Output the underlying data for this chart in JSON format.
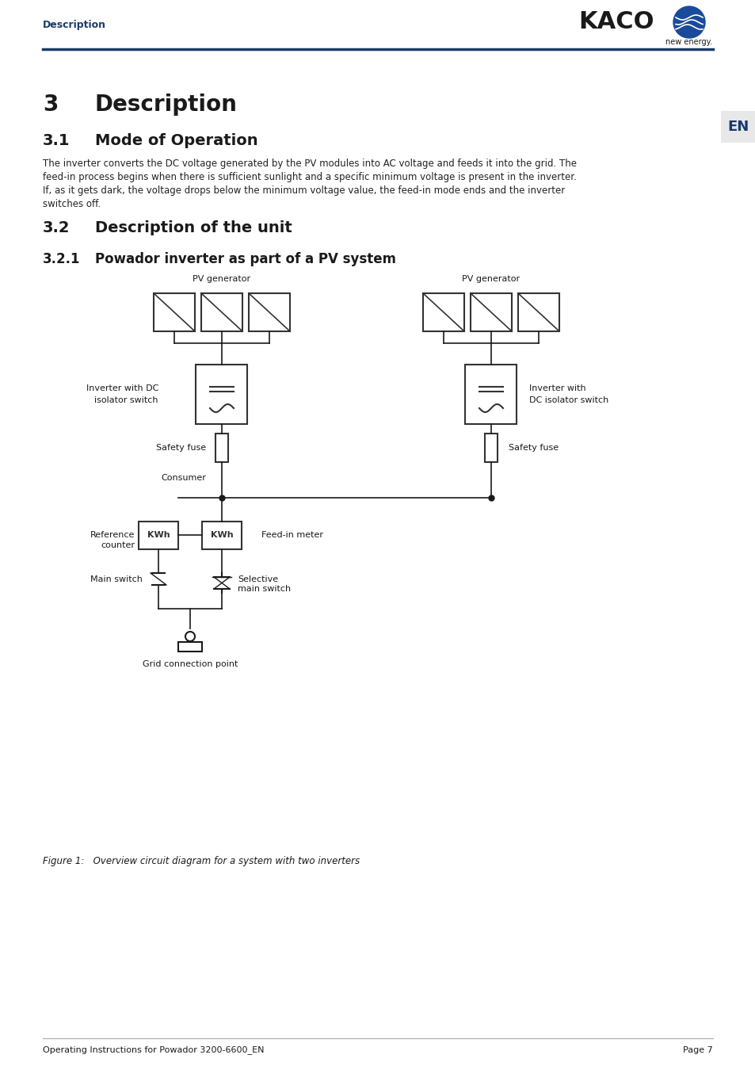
{
  "page_title": "Description",
  "kaco_text": "KACO",
  "new_energy_text": "new energy.",
  "en_label": "EN",
  "header_line_color": "#1a3a6b",
  "section3_title": "3     Description",
  "section31_title": "3.1     Mode of Operation",
  "section31_body": "The inverter converts the DC voltage generated by the PV modules into AC voltage and feeds it into the grid. The\nfeed-in process begins when there is sufficient sunlight and a specific minimum voltage is present in the inverter.\nIf, as it gets dark, the voltage drops below the minimum voltage value, the feed-in mode ends and the inverter\nswitches off.",
  "section32_title": "3.2     Description of the unit",
  "section321_title": "3.2.1     Powador inverter as part of a PV system",
  "figure_caption": "Figure 1:   Overview circuit diagram for a system with two inverters",
  "footer_left": "Operating Instructions for Powador 3200-6600_EN",
  "footer_right": "Page 7",
  "text_color": "#1a1a1a",
  "blue_color": "#1a3a6b",
  "body_text_color": "#222222",
  "bg_color": "#ffffff",
  "diagram_labels": {
    "pv_generator_left": "PV generator",
    "pv_generator_right": "PV generator",
    "inverter_left_line1": "Inverter with DC",
    "inverter_left_line2": "isolator switch",
    "inverter_right_line1": "Inverter with",
    "inverter_right_line2": "DC isolator switch",
    "safety_fuse_left": "Safety fuse",
    "safety_fuse_right": "Safety fuse",
    "consumer": "Consumer",
    "reference_counter_line1": "Reference",
    "reference_counter_line2": "counter",
    "kwh_left": "KWh",
    "kwh_right": "KWh",
    "feed_in_meter": "Feed-in meter",
    "main_switch": "Main switch",
    "selective_main_switch_line1": "Selective",
    "selective_main_switch_line2": "main switch",
    "grid_connection": "Grid connection point"
  }
}
